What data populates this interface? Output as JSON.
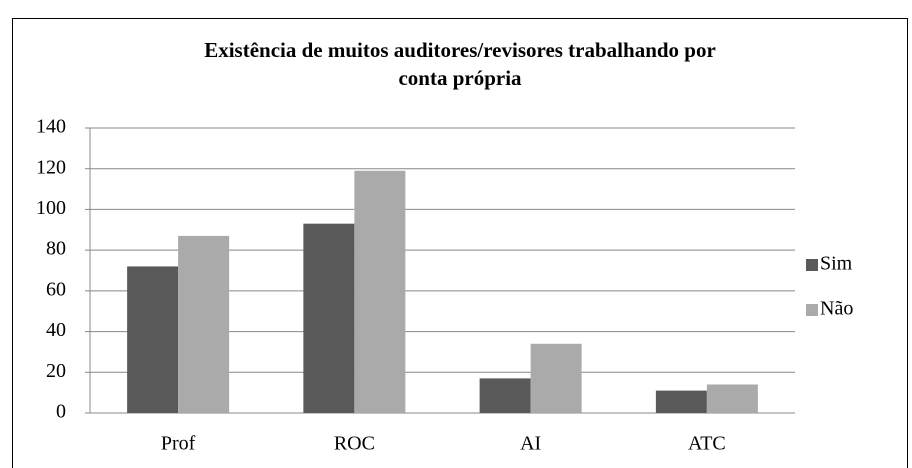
{
  "chart_data": {
    "type": "bar",
    "title": "Existência de muitos auditores/revisores trabalhando por conta própria",
    "categories": [
      "Prof",
      "ROC",
      "AI",
      "ATC"
    ],
    "series": [
      {
        "name": "Sim",
        "color": "#595959",
        "values": [
          72,
          93,
          17,
          11
        ]
      },
      {
        "name": "Não",
        "color": "#aaaaaa",
        "values": [
          87,
          119,
          34,
          14
        ]
      }
    ],
    "ylim": [
      0,
      140
    ],
    "yticks": [
      0,
      20,
      40,
      60,
      80,
      100,
      120,
      140
    ],
    "grid": true,
    "legend": "right"
  }
}
